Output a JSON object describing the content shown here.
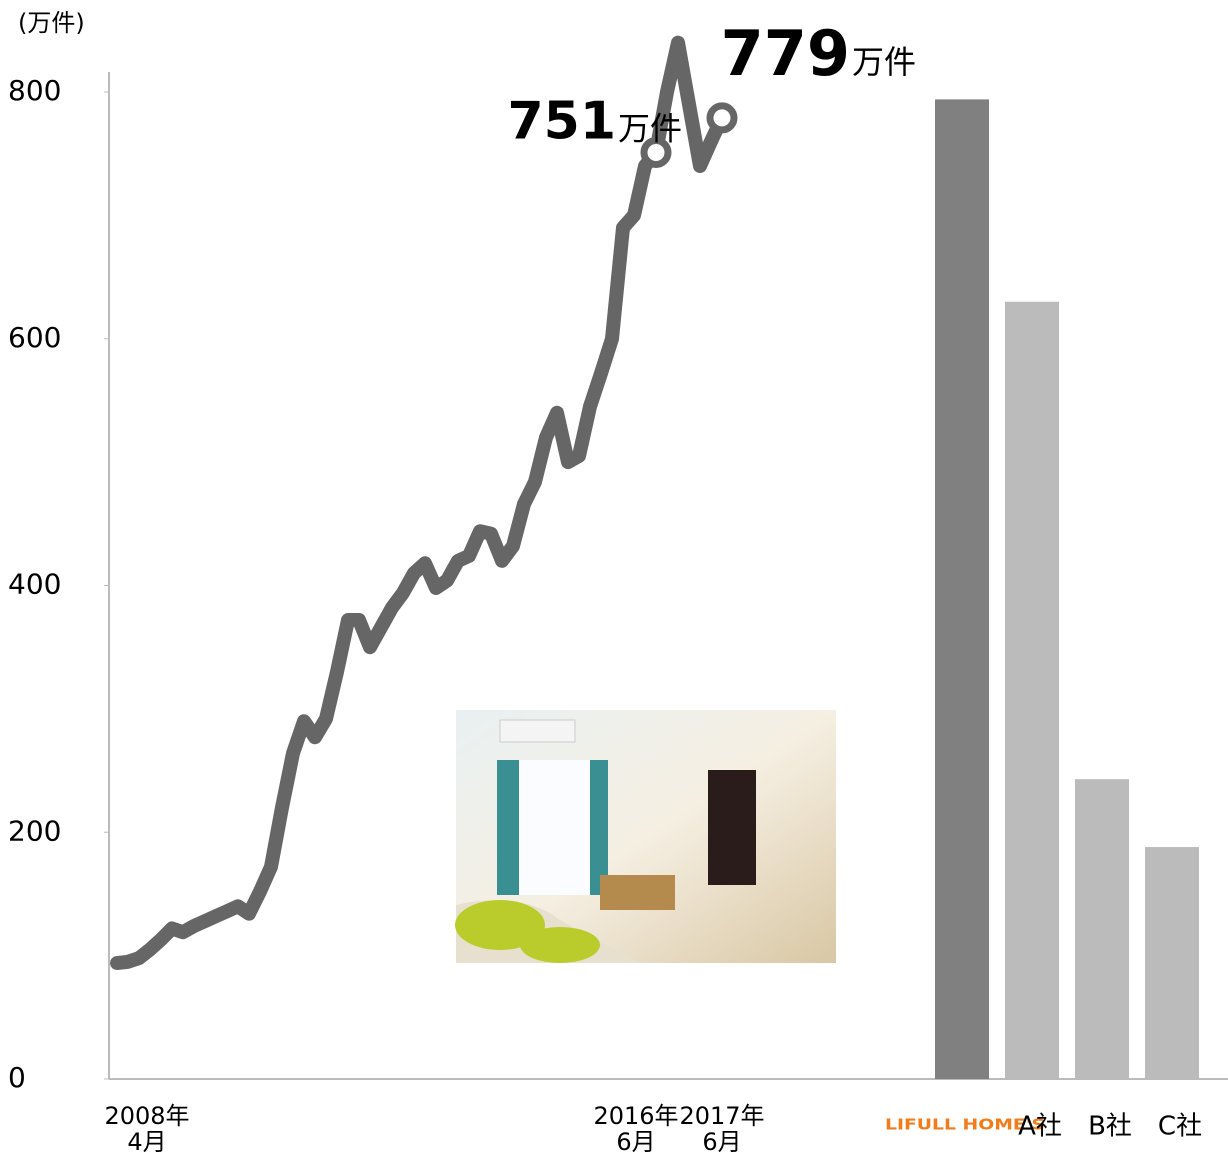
{
  "chart_data": [
    {
      "type": "line",
      "y_label": "(万件)",
      "ylim": [
        0,
        800
      ],
      "yticks": [
        0,
        200,
        400,
        600,
        800
      ],
      "color": "#666666",
      "categories": [
        "2008年\n4月",
        null,
        null,
        null,
        null,
        null,
        null,
        null,
        null,
        null,
        null,
        null,
        null,
        null,
        null,
        null,
        null,
        null,
        null,
        null,
        null,
        null,
        null,
        null,
        null,
        null,
        null,
        null,
        null,
        null,
        null,
        null,
        null,
        null,
        null,
        null,
        null,
        null,
        null,
        null,
        null,
        null,
        null,
        null,
        null,
        null,
        null,
        null,
        null,
        "2016年\n6月",
        null,
        null,
        null,
        null,
        null,
        "2017年\n6月"
      ],
      "values": [
        94,
        95,
        98,
        105,
        113,
        122,
        119,
        124,
        128,
        132,
        136,
        140,
        134,
        152,
        172,
        220,
        264,
        290,
        277,
        292,
        330,
        372,
        372,
        350,
        366,
        382,
        394,
        410,
        418,
        398,
        404,
        420,
        424,
        444,
        442,
        420,
        432,
        466,
        484,
        520,
        540,
        500,
        505,
        545,
        572,
        600,
        690,
        700,
        740,
        751,
        800,
        840,
        790,
        740,
        760,
        779
      ],
      "value_labels": [
        null,
        null,
        null,
        null,
        null,
        null,
        null,
        null,
        null,
        null,
        null,
        null,
        null,
        null,
        null,
        null,
        null,
        null,
        null,
        null,
        null,
        null,
        null,
        null,
        null,
        null,
        null,
        null,
        null,
        null,
        null,
        null,
        null,
        null,
        null,
        null,
        null,
        null,
        null,
        null,
        null,
        null,
        null,
        null,
        null,
        null,
        null,
        null,
        null,
        "751",
        null,
        null,
        null,
        null,
        null,
        "779"
      ],
      "value_label_unit": "万件"
    },
    {
      "type": "bar",
      "ylim": [
        0,
        800
      ],
      "categories": [
        "LIFULL HOME'S",
        "A社",
        "B社",
        "C社"
      ],
      "values": [
        794,
        630,
        243,
        188
      ],
      "colors": [
        "#808080",
        "#bbbbbb",
        "#bbbbbb",
        "#bbbbbb"
      ]
    }
  ]
}
